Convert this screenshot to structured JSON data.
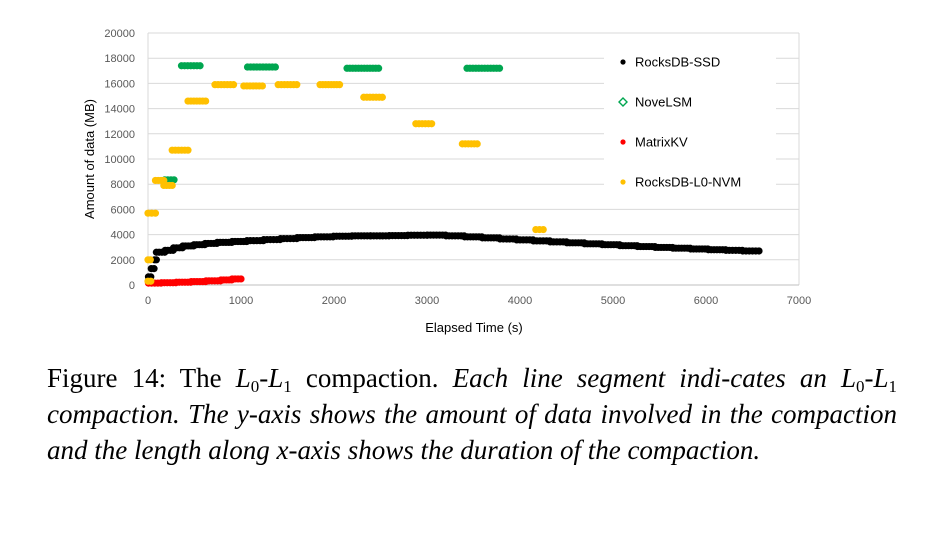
{
  "chart_data": {
    "type": "scatter",
    "xlabel": "Elapsed Time (s)",
    "ylabel": "Amount of data (MB)",
    "xlim": [
      0,
      7000
    ],
    "ylim": [
      0,
      20000
    ],
    "x_ticks": [
      0,
      1000,
      2000,
      3000,
      4000,
      5000,
      6000,
      7000
    ],
    "y_ticks": [
      0,
      2000,
      4000,
      6000,
      8000,
      10000,
      12000,
      14000,
      16000,
      18000,
      20000
    ],
    "grid": "horizontal",
    "legend_position": "right",
    "series": [
      {
        "name": "RocksDB-SSD",
        "color": "#000000",
        "marker": "filled-dot",
        "segments": [
          {
            "x0": 5,
            "x1": 30,
            "y": 650
          },
          {
            "x0": 35,
            "x1": 65,
            "y": 1300
          },
          {
            "x0": 70,
            "x1": 90,
            "y": 2000
          },
          {
            "x0": 90,
            "x1": 180,
            "y": 2600
          },
          {
            "x0": 185,
            "x1": 270,
            "y": 2750
          },
          {
            "x0": 275,
            "x1": 370,
            "y": 2950
          },
          {
            "x0": 375,
            "x1": 490,
            "y": 3100
          },
          {
            "x0": 495,
            "x1": 610,
            "y": 3200
          },
          {
            "x0": 615,
            "x1": 740,
            "y": 3300
          },
          {
            "x0": 745,
            "x1": 900,
            "y": 3380
          },
          {
            "x0": 905,
            "x1": 1060,
            "y": 3450
          },
          {
            "x0": 1065,
            "x1": 1240,
            "y": 3520
          },
          {
            "x0": 1245,
            "x1": 1420,
            "y": 3600
          },
          {
            "x0": 1425,
            "x1": 1600,
            "y": 3680
          },
          {
            "x0": 1605,
            "x1": 1790,
            "y": 3760
          },
          {
            "x0": 1795,
            "x1": 1990,
            "y": 3820
          },
          {
            "x0": 1995,
            "x1": 2190,
            "y": 3870
          },
          {
            "x0": 2195,
            "x1": 2390,
            "y": 3900
          },
          {
            "x0": 2395,
            "x1": 2590,
            "y": 3900
          },
          {
            "x0": 2595,
            "x1": 2790,
            "y": 3920
          },
          {
            "x0": 2795,
            "x1": 3000,
            "y": 3950
          },
          {
            "x0": 3005,
            "x1": 3200,
            "y": 3960
          },
          {
            "x0": 3205,
            "x1": 3400,
            "y": 3900
          },
          {
            "x0": 3405,
            "x1": 3590,
            "y": 3820
          },
          {
            "x0": 3595,
            "x1": 3780,
            "y": 3740
          },
          {
            "x0": 3785,
            "x1": 3960,
            "y": 3650
          },
          {
            "x0": 3965,
            "x1": 4140,
            "y": 3580
          },
          {
            "x0": 4145,
            "x1": 4320,
            "y": 3500
          },
          {
            "x0": 4325,
            "x1": 4500,
            "y": 3420
          },
          {
            "x0": 4505,
            "x1": 4690,
            "y": 3350
          },
          {
            "x0": 4695,
            "x1": 4880,
            "y": 3270
          },
          {
            "x0": 4885,
            "x1": 5070,
            "y": 3200
          },
          {
            "x0": 5075,
            "x1": 5260,
            "y": 3120
          },
          {
            "x0": 5265,
            "x1": 5450,
            "y": 3050
          },
          {
            "x0": 5455,
            "x1": 5640,
            "y": 2980
          },
          {
            "x0": 5645,
            "x1": 5830,
            "y": 2920
          },
          {
            "x0": 5835,
            "x1": 6020,
            "y": 2860
          },
          {
            "x0": 6025,
            "x1": 6210,
            "y": 2800
          },
          {
            "x0": 6215,
            "x1": 6390,
            "y": 2750
          },
          {
            "x0": 6395,
            "x1": 6570,
            "y": 2700
          }
        ]
      },
      {
        "name": "NoveLSM",
        "color": "#00A650",
        "marker": "open-diamond",
        "segments": [
          {
            "x0": 180,
            "x1": 280,
            "y": 8350
          },
          {
            "x0": 360,
            "x1": 560,
            "y": 17400
          },
          {
            "x0": 1070,
            "x1": 1370,
            "y": 17300
          },
          {
            "x0": 2140,
            "x1": 2480,
            "y": 17200
          },
          {
            "x0": 3430,
            "x1": 3780,
            "y": 17200
          }
        ]
      },
      {
        "name": "MatrixKV",
        "color": "#FF0000",
        "marker": "filled-dot",
        "segments": [
          {
            "x0": 5,
            "x1": 140,
            "y": 150
          },
          {
            "x0": 145,
            "x1": 300,
            "y": 180
          },
          {
            "x0": 305,
            "x1": 460,
            "y": 220
          },
          {
            "x0": 465,
            "x1": 620,
            "y": 270
          },
          {
            "x0": 625,
            "x1": 780,
            "y": 330
          },
          {
            "x0": 785,
            "x1": 900,
            "y": 400
          },
          {
            "x0": 905,
            "x1": 1000,
            "y": 480
          }
        ]
      },
      {
        "name": "RocksDB-L0-NVM",
        "color": "#FFC000",
        "marker": "filled-dot",
        "segments": [
          {
            "x0": 0,
            "x1": 25,
            "y": 2000
          },
          {
            "x0": 0,
            "x1": 30,
            "y": 300
          },
          {
            "x0": 0,
            "x1": 80,
            "y": 5700
          },
          {
            "x0": 80,
            "x1": 170,
            "y": 8300
          },
          {
            "x0": 170,
            "x1": 260,
            "y": 7900
          },
          {
            "x0": 260,
            "x1": 430,
            "y": 10700
          },
          {
            "x0": 430,
            "x1": 620,
            "y": 14600
          },
          {
            "x0": 720,
            "x1": 920,
            "y": 15900
          },
          {
            "x0": 1030,
            "x1": 1230,
            "y": 15800
          },
          {
            "x0": 1400,
            "x1": 1600,
            "y": 15900
          },
          {
            "x0": 1850,
            "x1": 2060,
            "y": 15900
          },
          {
            "x0": 2320,
            "x1": 2520,
            "y": 14900
          },
          {
            "x0": 2880,
            "x1": 3050,
            "y": 12800
          },
          {
            "x0": 3380,
            "x1": 3540,
            "y": 11200
          },
          {
            "x0": 4170,
            "x1": 4250,
            "y": 4400
          }
        ]
      }
    ]
  },
  "caption": {
    "prefix": "Figure 14: The ",
    "l0_base": "L",
    "l0_sub": "0",
    "dash": "-",
    "l1_base": "L",
    "l1_sub": "1",
    "after_l": " compaction.",
    "italic_part1": "Each line segment indi-cates an ",
    "italic_part2": " compaction. The y-axis shows the amount of data involved in the compaction and the length along x-axis shows the duration of the compaction."
  }
}
